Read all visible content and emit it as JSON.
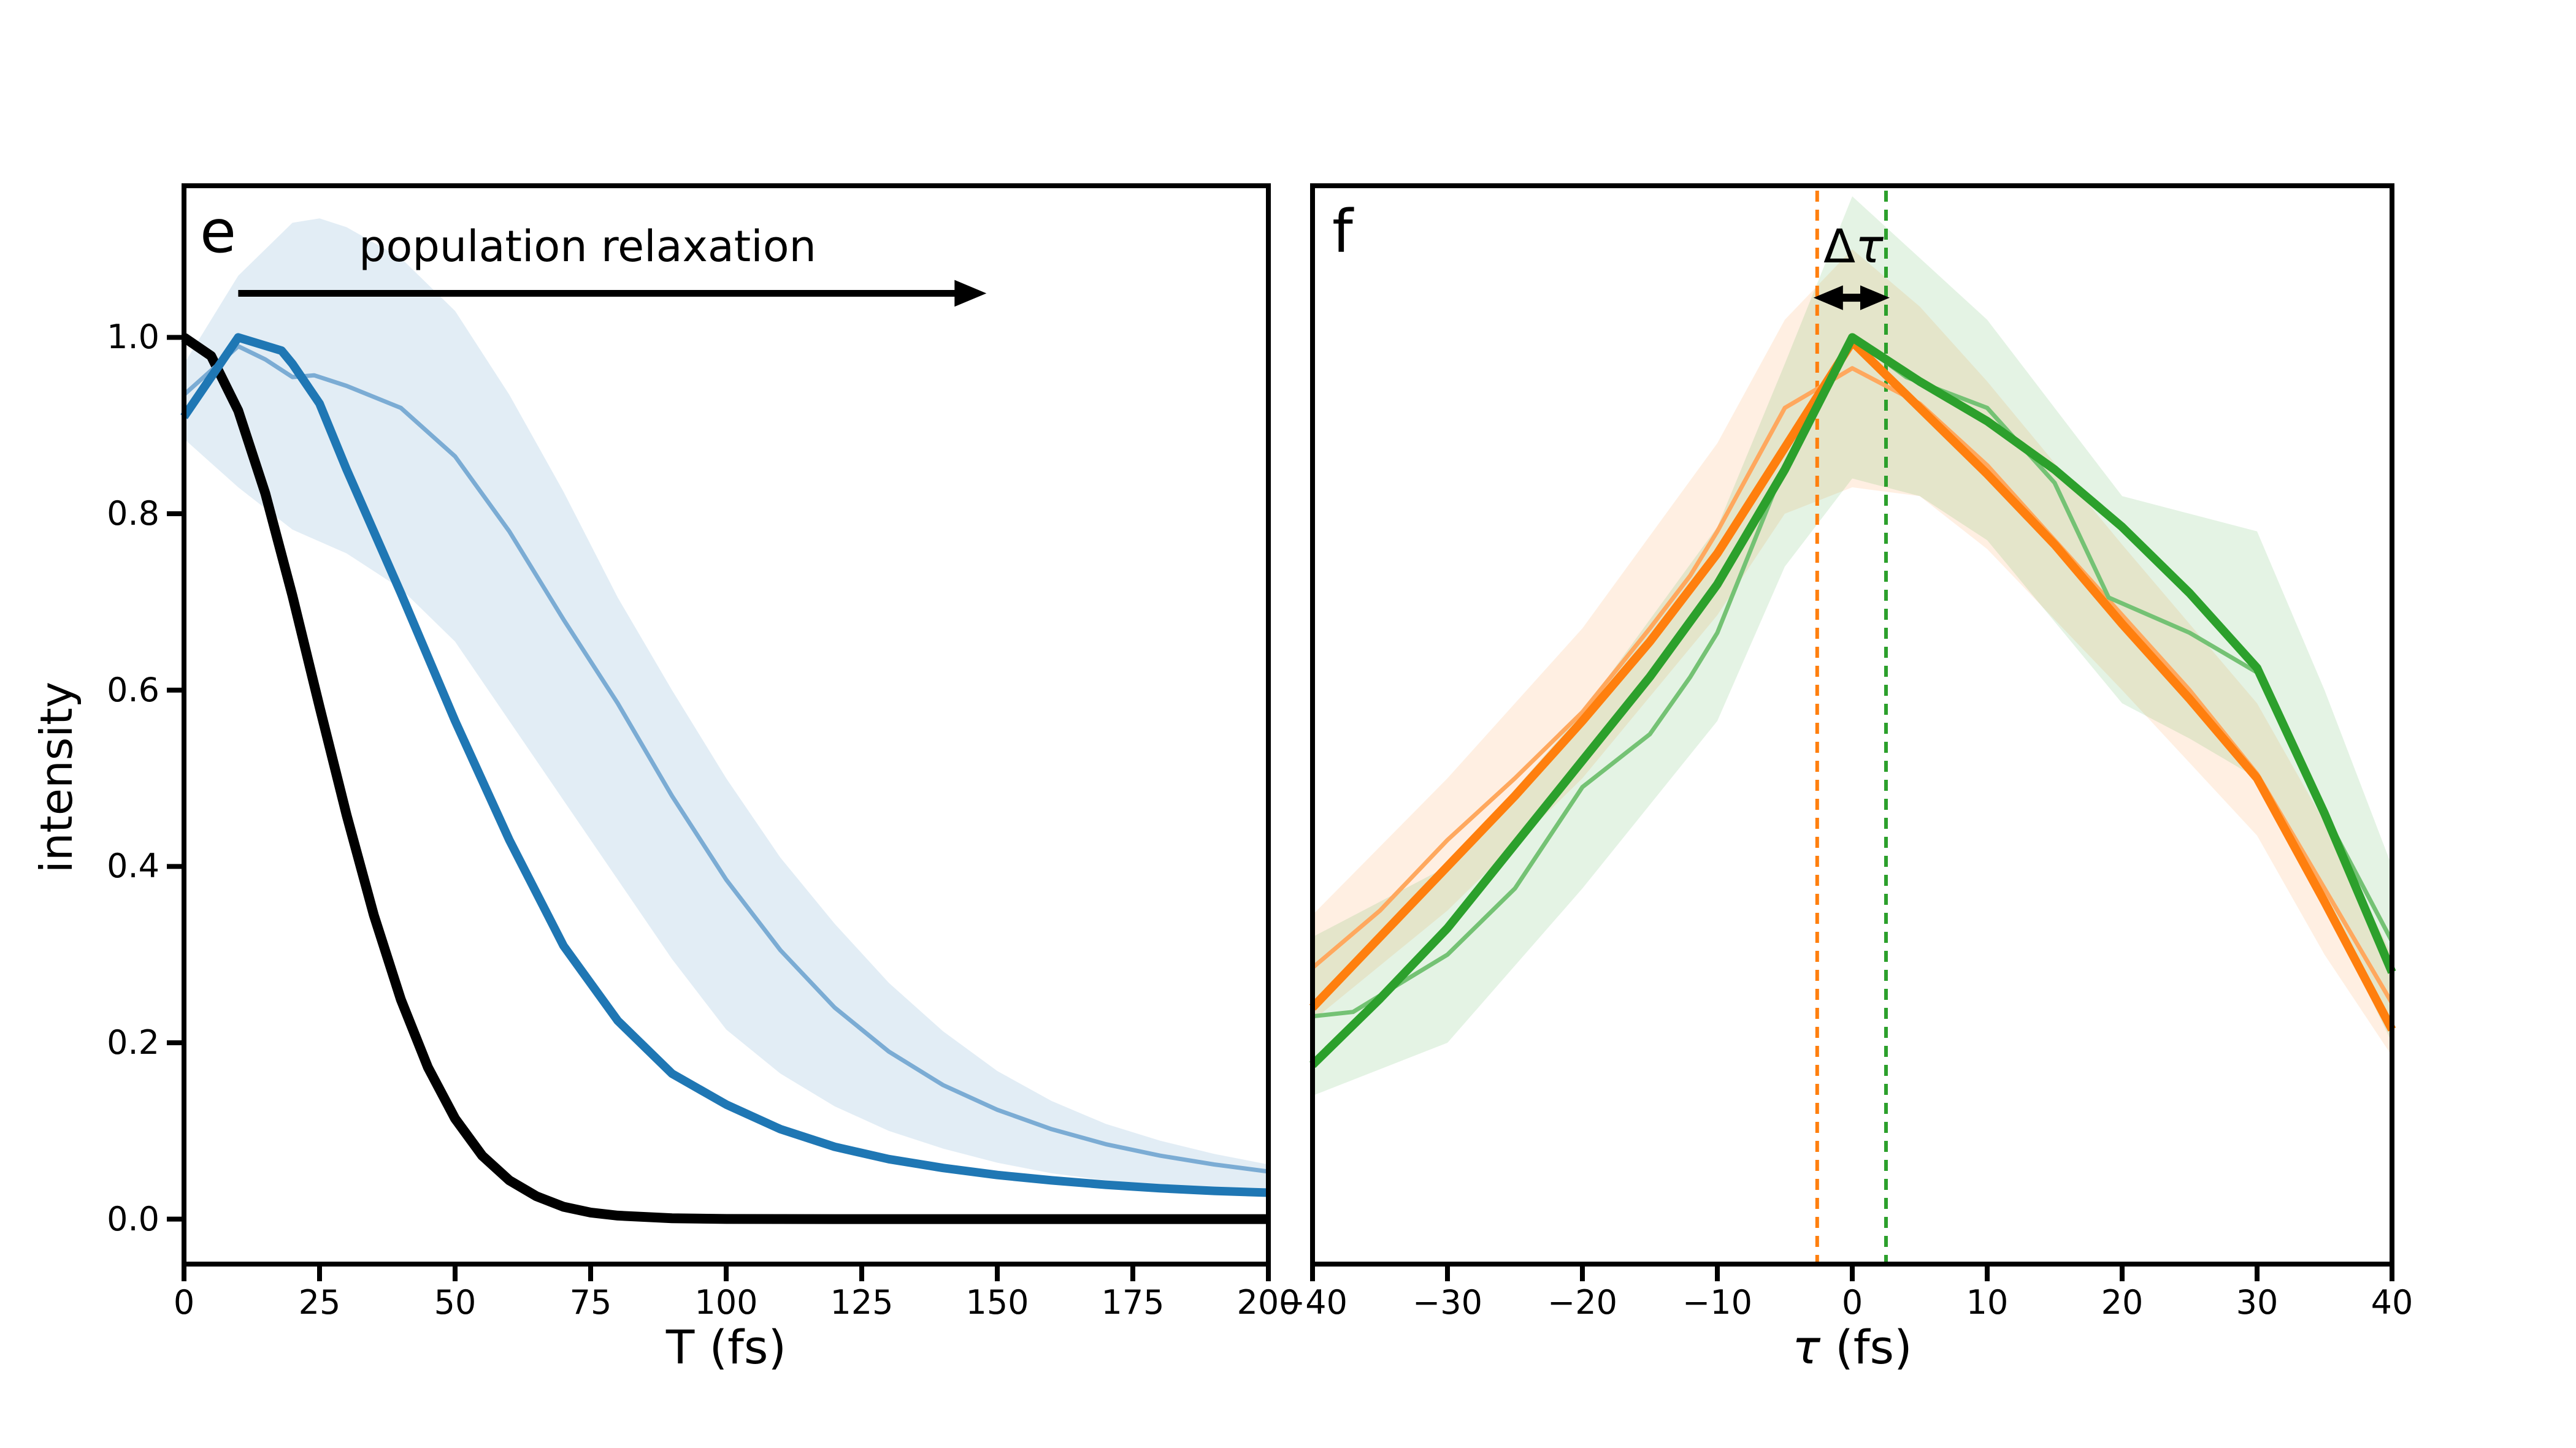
{
  "panel_e": {
    "letter": "e",
    "annotation": "population relaxation",
    "xlabel": "T (fs)",
    "ylabel": "intensity",
    "x_ticks": [
      "0",
      "25",
      "50",
      "75",
      "100",
      "125",
      "150",
      "175",
      "200"
    ],
    "y_ticks": [
      "0.0",
      "0.2",
      "0.4",
      "0.6",
      "0.8",
      "1.0"
    ]
  },
  "panel_f": {
    "letter": "f",
    "delta_sym": "Δ",
    "delta_tau": "τ",
    "xlabel_tau": "τ",
    "xlabel_rest": " (fs)",
    "x_ticks": [
      "−40",
      "−30",
      "−20",
      "−10",
      "0",
      "10",
      "20",
      "30",
      "40"
    ]
  },
  "colors": {
    "black": "#000000",
    "blue_thick": "#1f77b4",
    "blue_thin": "#7bacd4",
    "blue_band": "rgba(31,119,180,0.13)",
    "orange_thick": "#ff7f0e",
    "orange_thin": "#ffa85e",
    "orange_band": "rgba(255,127,14,0.12)",
    "green_thick": "#2ca02c",
    "green_thin": "#74c274",
    "green_band": "rgba(44,160,44,0.13)",
    "spine": "#000000"
  },
  "chart_data": [
    {
      "panel": "e",
      "type": "line",
      "xlabel": "T (fs)",
      "ylabel": "intensity",
      "xlim": [
        0,
        200
      ],
      "ylim": [
        -0.05,
        1.17
      ],
      "x_tick_values": [
        0,
        25,
        50,
        75,
        100,
        125,
        150,
        175,
        200
      ],
      "y_tick_values": [
        0.0,
        0.2,
        0.4,
        0.6,
        0.8,
        1.0
      ],
      "grid": false,
      "legend": "none",
      "bands": [
        {
          "name": "blue-uncertainty-band",
          "upper": [
            [
              0,
              0.97
            ],
            [
              10,
              1.07
            ],
            [
              20,
              1.13
            ],
            [
              25,
              1.135
            ],
            [
              30,
              1.125
            ],
            [
              40,
              1.09
            ],
            [
              50,
              1.03
            ],
            [
              60,
              0.935
            ],
            [
              70,
              0.825
            ],
            [
              80,
              0.705
            ],
            [
              90,
              0.6
            ],
            [
              100,
              0.5
            ],
            [
              110,
              0.41
            ],
            [
              120,
              0.335
            ],
            [
              130,
              0.268
            ],
            [
              140,
              0.213
            ],
            [
              150,
              0.168
            ],
            [
              160,
              0.134
            ],
            [
              170,
              0.108
            ],
            [
              180,
              0.089
            ],
            [
              190,
              0.074
            ],
            [
              200,
              0.062
            ]
          ],
          "lower": [
            [
              0,
              0.885
            ],
            [
              10,
              0.83
            ],
            [
              20,
              0.782
            ],
            [
              30,
              0.755
            ],
            [
              40,
              0.715
            ],
            [
              50,
              0.655
            ],
            [
              60,
              0.565
            ],
            [
              70,
              0.475
            ],
            [
              80,
              0.385
            ],
            [
              90,
              0.295
            ],
            [
              100,
              0.215
            ],
            [
              110,
              0.165
            ],
            [
              120,
              0.128
            ],
            [
              130,
              0.1
            ],
            [
              140,
              0.08
            ],
            [
              150,
              0.064
            ],
            [
              160,
              0.052
            ],
            [
              170,
              0.044
            ],
            [
              180,
              0.038
            ],
            [
              190,
              0.033
            ],
            [
              200,
              0.029
            ]
          ]
        }
      ],
      "series": [
        {
          "name": "instrument-response-black",
          "width": 16,
          "points": [
            [
              0,
              1.0
            ],
            [
              5,
              0.979
            ],
            [
              10,
              0.917
            ],
            [
              15,
              0.823
            ],
            [
              20,
              0.707
            ],
            [
              25,
              0.581
            ],
            [
              30,
              0.458
            ],
            [
              35,
              0.345
            ],
            [
              40,
              0.249
            ],
            [
              45,
              0.172
            ],
            [
              50,
              0.114
            ],
            [
              55,
              0.072
            ],
            [
              60,
              0.044
            ],
            [
              65,
              0.026
            ],
            [
              70,
              0.014
            ],
            [
              75,
              0.0075
            ],
            [
              80,
              0.004
            ],
            [
              90,
              0.001
            ],
            [
              100,
              0.0002
            ],
            [
              120,
              0
            ],
            [
              140,
              0
            ],
            [
              160,
              0
            ],
            [
              180,
              0
            ],
            [
              200,
              0
            ]
          ]
        },
        {
          "name": "simulation-mean-thin-blue",
          "width": 7,
          "points": [
            [
              0,
              0.935
            ],
            [
              10,
              0.99
            ],
            [
              15,
              0.975
            ],
            [
              20,
              0.955
            ],
            [
              24,
              0.957
            ],
            [
              30,
              0.945
            ],
            [
              40,
              0.92
            ],
            [
              50,
              0.865
            ],
            [
              60,
              0.78
            ],
            [
              70,
              0.68
            ],
            [
              80,
              0.585
            ],
            [
              90,
              0.48
            ],
            [
              100,
              0.385
            ],
            [
              110,
              0.305
            ],
            [
              120,
              0.24
            ],
            [
              130,
              0.19
            ],
            [
              140,
              0.152
            ],
            [
              150,
              0.124
            ],
            [
              160,
              0.102
            ],
            [
              170,
              0.085
            ],
            [
              180,
              0.072
            ],
            [
              190,
              0.062
            ],
            [
              200,
              0.054
            ]
          ]
        },
        {
          "name": "measurement-thick-blue",
          "width": 14,
          "points": [
            [
              0,
              0.91
            ],
            [
              10,
              1.0
            ],
            [
              18,
              0.985
            ],
            [
              20,
              0.97
            ],
            [
              25,
              0.925
            ],
            [
              30,
              0.85
            ],
            [
              40,
              0.71
            ],
            [
              50,
              0.565
            ],
            [
              60,
              0.43
            ],
            [
              70,
              0.31
            ],
            [
              80,
              0.225
            ],
            [
              90,
              0.165
            ],
            [
              100,
              0.13
            ],
            [
              110,
              0.102
            ],
            [
              120,
              0.082
            ],
            [
              130,
              0.068
            ],
            [
              140,
              0.058
            ],
            [
              150,
              0.05
            ],
            [
              160,
              0.044
            ],
            [
              170,
              0.039
            ],
            [
              180,
              0.035
            ],
            [
              190,
              0.032
            ],
            [
              200,
              0.03
            ]
          ]
        }
      ],
      "annotations": {
        "text": "population relaxation",
        "text_pos": [
          74,
          1.105
        ],
        "arrow_from": [
          10,
          1.05
        ],
        "arrow_to": [
          148,
          1.05
        ]
      }
    },
    {
      "panel": "f",
      "type": "line",
      "xlabel": "tau (fs)",
      "xlim": [
        -40,
        40
      ],
      "ylim": [
        -0.05,
        1.17
      ],
      "x_tick_values": [
        -40,
        -30,
        -20,
        -10,
        0,
        10,
        20,
        30,
        40
      ],
      "grid": false,
      "legend": "none",
      "vlines": [
        {
          "name": "orange-peak-center",
          "x": -2.6,
          "style": "dashed"
        },
        {
          "name": "green-peak-center",
          "x": 2.5,
          "style": "dashed"
        }
      ],
      "delta_tau_annotation": {
        "label": "Δτ",
        "text_pos": [
          0.2,
          1.105
        ],
        "arrow_x": [
          -2.6,
          2.5
        ],
        "arrow_y": 1.045
      },
      "bands": [
        {
          "name": "orange-uncertainty-band",
          "upper": [
            [
              -40,
              0.345
            ],
            [
              -30,
              0.5
            ],
            [
              -20,
              0.67
            ],
            [
              -10,
              0.88
            ],
            [
              -5,
              1.02
            ],
            [
              0,
              1.1
            ],
            [
              5,
              1.035
            ],
            [
              10,
              0.95
            ],
            [
              20,
              0.765
            ],
            [
              30,
              0.585
            ],
            [
              35,
              0.45
            ],
            [
              40,
              0.3
            ]
          ],
          "lower": [
            [
              -40,
              0.225
            ],
            [
              -30,
              0.35
            ],
            [
              -20,
              0.5
            ],
            [
              -10,
              0.685
            ],
            [
              -5,
              0.8
            ],
            [
              0,
              0.83
            ],
            [
              5,
              0.82
            ],
            [
              10,
              0.76
            ],
            [
              20,
              0.6
            ],
            [
              30,
              0.435
            ],
            [
              35,
              0.3
            ],
            [
              40,
              0.185
            ]
          ]
        },
        {
          "name": "green-uncertainty-band",
          "upper": [
            [
              -40,
              0.32
            ],
            [
              -30,
              0.4
            ],
            [
              -20,
              0.575
            ],
            [
              -10,
              0.785
            ],
            [
              -5,
              0.97
            ],
            [
              0,
              1.16
            ],
            [
              5,
              1.09
            ],
            [
              10,
              1.02
            ],
            [
              20,
              0.82
            ],
            [
              25,
              0.8
            ],
            [
              30,
              0.78
            ],
            [
              35,
              0.6
            ],
            [
              40,
              0.4
            ]
          ],
          "lower": [
            [
              -40,
              0.14
            ],
            [
              -30,
              0.2
            ],
            [
              -20,
              0.375
            ],
            [
              -10,
              0.565
            ],
            [
              -5,
              0.74
            ],
            [
              0,
              0.84
            ],
            [
              5,
              0.82
            ],
            [
              10,
              0.77
            ],
            [
              20,
              0.585
            ],
            [
              25,
              0.545
            ],
            [
              30,
              0.5
            ],
            [
              35,
              0.36
            ],
            [
              40,
              0.2
            ]
          ]
        }
      ],
      "series": [
        {
          "name": "simulation-mean-thin-orange",
          "width": 7,
          "points": [
            [
              -40,
              0.285
            ],
            [
              -35,
              0.35
            ],
            [
              -30,
              0.43
            ],
            [
              -25,
              0.5
            ],
            [
              -20,
              0.575
            ],
            [
              -15,
              0.67
            ],
            [
              -12,
              0.73
            ],
            [
              -10,
              0.78
            ],
            [
              -5,
              0.92
            ],
            [
              0,
              0.965
            ],
            [
              5,
              0.925
            ],
            [
              10,
              0.855
            ],
            [
              15,
              0.77
            ],
            [
              20,
              0.685
            ],
            [
              25,
              0.6
            ],
            [
              30,
              0.505
            ],
            [
              35,
              0.375
            ],
            [
              40,
              0.245
            ]
          ]
        },
        {
          "name": "simulation-mean-thin-green",
          "width": 7,
          "points": [
            [
              -40,
              0.23
            ],
            [
              -37,
              0.235
            ],
            [
              -30,
              0.3
            ],
            [
              -25,
              0.375
            ],
            [
              -20,
              0.49
            ],
            [
              -15,
              0.55
            ],
            [
              -12,
              0.615
            ],
            [
              -10,
              0.665
            ],
            [
              -5,
              0.855
            ],
            [
              0,
              1.0
            ],
            [
              4,
              0.955
            ],
            [
              10,
              0.92
            ],
            [
              15,
              0.835
            ],
            [
              19,
              0.705
            ],
            [
              25,
              0.665
            ],
            [
              30,
              0.62
            ],
            [
              35,
              0.46
            ],
            [
              40,
              0.315
            ]
          ]
        },
        {
          "name": "measurement-thick-orange",
          "width": 14,
          "points": [
            [
              -40,
              0.24
            ],
            [
              -35,
              0.32
            ],
            [
              -30,
              0.4
            ],
            [
              -25,
              0.48
            ],
            [
              -20,
              0.565
            ],
            [
              -15,
              0.655
            ],
            [
              -10,
              0.755
            ],
            [
              -5,
              0.875
            ],
            [
              0,
              0.995
            ],
            [
              5,
              0.92
            ],
            [
              10,
              0.845
            ],
            [
              15,
              0.765
            ],
            [
              20,
              0.675
            ],
            [
              25,
              0.59
            ],
            [
              30,
              0.5
            ],
            [
              35,
              0.36
            ],
            [
              40,
              0.215
            ]
          ]
        },
        {
          "name": "measurement-thick-green",
          "width": 14,
          "points": [
            [
              -40,
              0.175
            ],
            [
              -35,
              0.25
            ],
            [
              -30,
              0.33
            ],
            [
              -25,
              0.425
            ],
            [
              -20,
              0.52
            ],
            [
              -15,
              0.615
            ],
            [
              -10,
              0.72
            ],
            [
              -5,
              0.85
            ],
            [
              0,
              1.0
            ],
            [
              5,
              0.95
            ],
            [
              10,
              0.905
            ],
            [
              15,
              0.85
            ],
            [
              20,
              0.785
            ],
            [
              25,
              0.71
            ],
            [
              30,
              0.625
            ],
            [
              35,
              0.46
            ],
            [
              40,
              0.28
            ]
          ]
        }
      ]
    }
  ]
}
